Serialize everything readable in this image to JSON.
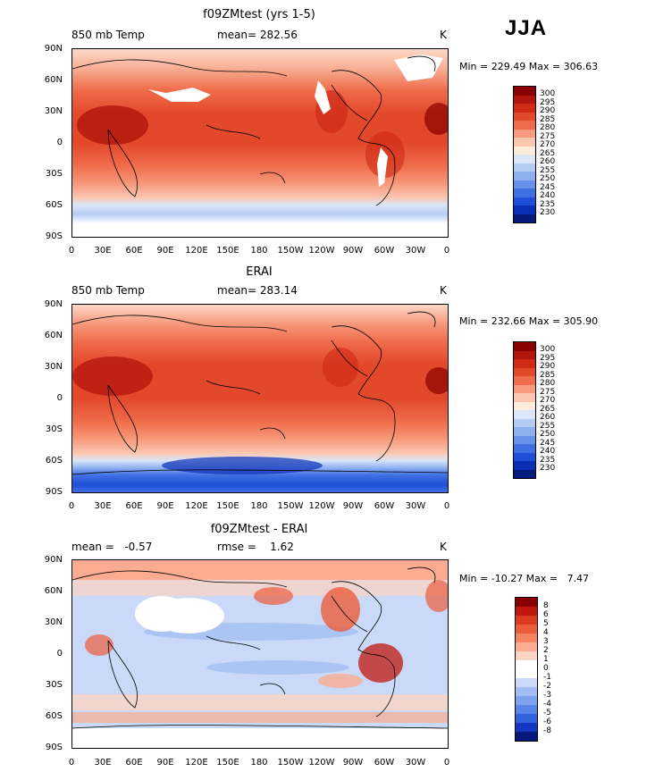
{
  "season": "JJA",
  "axes": {
    "lon_labels": [
      "0",
      "30E",
      "60E",
      "90E",
      "120E",
      "150E",
      "180",
      "150W",
      "120W",
      "90W",
      "60W",
      "30W",
      "0"
    ],
    "lat_labels": [
      "90N",
      "60N",
      "30N",
      "0",
      "30S",
      "60S",
      "90S"
    ]
  },
  "panels": [
    {
      "title": "f09ZMtest (yrs 1-5)",
      "left_text": "850 mb Temp",
      "center_text": "mean= 282.56",
      "units": "K",
      "minmax": "Min = 229.49 Max = 306.63",
      "colorbar": {
        "labels": [
          "300",
          "295",
          "290",
          "285",
          "280",
          "275",
          "270",
          "265",
          "260",
          "255",
          "250",
          "245",
          "240",
          "235",
          "230"
        ],
        "colors": [
          "#8b0000",
          "#b0160d",
          "#cf2a14",
          "#e2482a",
          "#ef6b49",
          "#f79a7d",
          "#fbc6af",
          "#fdebdc",
          "#dbe6f8",
          "#b6ccf5",
          "#8fb0f0",
          "#6791ea",
          "#3e6fe3",
          "#1f4fd8",
          "#0a2fb6",
          "#061a7c"
        ]
      }
    },
    {
      "title": "ERAI",
      "left_text": "850 mb Temp",
      "center_text": "mean= 283.14",
      "units": "K",
      "minmax": "Min = 232.66 Max = 305.90",
      "colorbar": {
        "labels": [
          "300",
          "295",
          "290",
          "285",
          "280",
          "275",
          "270",
          "265",
          "260",
          "255",
          "250",
          "245",
          "240",
          "235",
          "230"
        ],
        "colors": [
          "#8b0000",
          "#b0160d",
          "#cf2a14",
          "#e2482a",
          "#ef6b49",
          "#f79a7d",
          "#fbc6af",
          "#fdebdc",
          "#dbe6f8",
          "#b6ccf5",
          "#8fb0f0",
          "#6791ea",
          "#3e6fe3",
          "#1f4fd8",
          "#0a2fb6",
          "#061a7c"
        ]
      }
    },
    {
      "title": "f09ZMtest - ERAI",
      "left_text": "mean =   -0.57",
      "center_text": "rmse =    1.62",
      "units": "K",
      "minmax": "Min = -10.27 Max =   7.47",
      "colorbar": {
        "labels": [
          "8",
          "6",
          "5",
          "4",
          "3",
          "2",
          "1",
          "0",
          "-1",
          "-2",
          "-3",
          "-4",
          "-5",
          "-6",
          "-8"
        ],
        "colors": [
          "#8b0000",
          "#c0180f",
          "#dc3a1f",
          "#ec5d3c",
          "#f58463",
          "#fbab90",
          "#fdd3c2",
          "#ffffff",
          "#ffffff",
          "#c9d9f7",
          "#a3bef3",
          "#7ea2ee",
          "#5a85e8",
          "#3262de",
          "#1438c4",
          "#061a7c"
        ]
      }
    }
  ]
}
